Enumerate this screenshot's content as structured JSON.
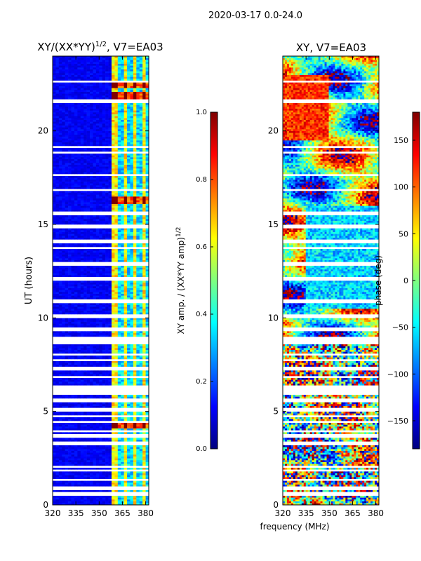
{
  "figure_title": "2020-03-17 0.0-24.0",
  "xlabel_shared": "frequency (MHz)",
  "colors": {
    "jet": [
      "#00007f",
      "#0000ff",
      "#007fff",
      "#00ffff",
      "#7fff7f",
      "#ffff00",
      "#ff7f00",
      "#ff0000",
      "#7f0000"
    ],
    "flagged": "#ffffff",
    "axis": "#000000"
  },
  "chart_data": [
    {
      "type": "heatmap",
      "panel": "left",
      "title_main": "XY/(XX*YY)",
      "title_sup": "1/2",
      "title_tail": ", V7=EA03",
      "xlabel": "",
      "ylabel": "UT (hours)",
      "xlim": [
        320,
        382
      ],
      "ylim": [
        0,
        24
      ],
      "xticks": [
        320,
        335,
        350,
        365,
        380
      ],
      "yticks": [
        0,
        5,
        10,
        15,
        20
      ],
      "colorbar": {
        "label_main": "XY amp. / (XX*YY amp)",
        "label_sup": "1/2",
        "range": [
          0.0,
          1.0
        ],
        "ticks": [
          "0.0",
          "0.2",
          "0.4",
          "0.6",
          "0.8",
          "1.0"
        ]
      },
      "description_values": {
        "background_level": 0.08,
        "active_band_mhz": [
          359,
          381
        ],
        "bright_bands_ut": [
          4.3,
          16.3,
          21.9,
          22.5
        ]
      }
    },
    {
      "type": "heatmap",
      "panel": "right",
      "title_main": "XY, V7=EA03",
      "xlabel": "",
      "ylabel": "",
      "xlim": [
        320,
        382
      ],
      "ylim": [
        0,
        24
      ],
      "xticks": [
        320,
        335,
        350,
        365,
        380
      ],
      "yticks": [
        0,
        5,
        10,
        15,
        20
      ],
      "colorbar": {
        "label_main": "phase (deg)",
        "range": [
          -180,
          180
        ],
        "ticks": [
          "−150",
          "−100",
          "−50",
          "0",
          "50",
          "100",
          "150"
        ],
        "tick_values": [
          -150,
          -100,
          -50,
          0,
          50,
          100,
          150
        ]
      }
    }
  ],
  "flagged_ut": [
    0.6,
    0.9,
    1.1,
    1.4,
    1.6,
    1.9,
    2.05,
    2.4,
    2.6,
    3.1,
    3.3,
    3.7,
    3.95,
    4.45,
    4.7,
    5.1,
    5.6,
    5.9,
    6.1,
    6.3,
    6.85,
    7.3,
    7.7,
    8.05,
    8.5,
    8.65,
    9.2,
    9.4,
    9.7,
    10.1,
    10.5,
    10.9,
    11.3,
    11.7,
    12.1,
    12.5,
    12.9,
    13.3,
    13.75,
    14.1,
    14.5,
    14.9,
    15.3,
    15.6,
    16.6,
    16.9,
    17.1,
    17.7,
    18.1,
    18.5,
    18.9,
    19.2,
    19.5,
    21.1,
    21.55,
    21.65,
    22.1,
    22.7
  ]
}
